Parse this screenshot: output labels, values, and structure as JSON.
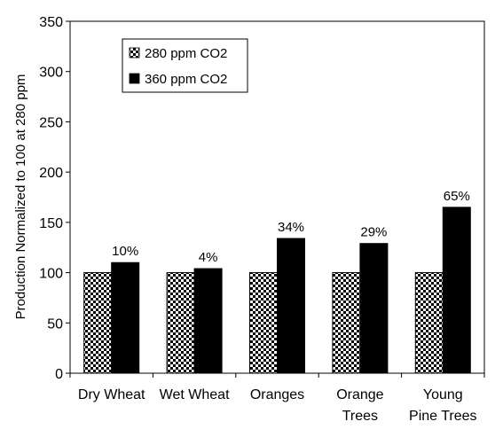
{
  "chart_data": {
    "type": "bar",
    "title": "",
    "xlabel": "",
    "ylabel": "Production Normalized to 100 at 280 ppm",
    "ylim": [
      0,
      350
    ],
    "yticks": [
      0,
      50,
      100,
      150,
      200,
      250,
      300,
      350
    ],
    "categories": [
      [
        "Dry Wheat"
      ],
      [
        "Wet Wheat"
      ],
      [
        "Oranges"
      ],
      [
        "Orange",
        "Trees"
      ],
      [
        "Young",
        "Pine Trees"
      ]
    ],
    "series": [
      {
        "name": "280 ppm CO2",
        "values": [
          100,
          100,
          100,
          100,
          100
        ],
        "fill": "checker"
      },
      {
        "name": "360 ppm CO2",
        "values": [
          110,
          104,
          134,
          129,
          165
        ],
        "fill": "#000000"
      }
    ],
    "data_labels": [
      "10%",
      "4%",
      "34%",
      "29%",
      "65%"
    ],
    "grid": false,
    "legend_position": "top-left"
  }
}
